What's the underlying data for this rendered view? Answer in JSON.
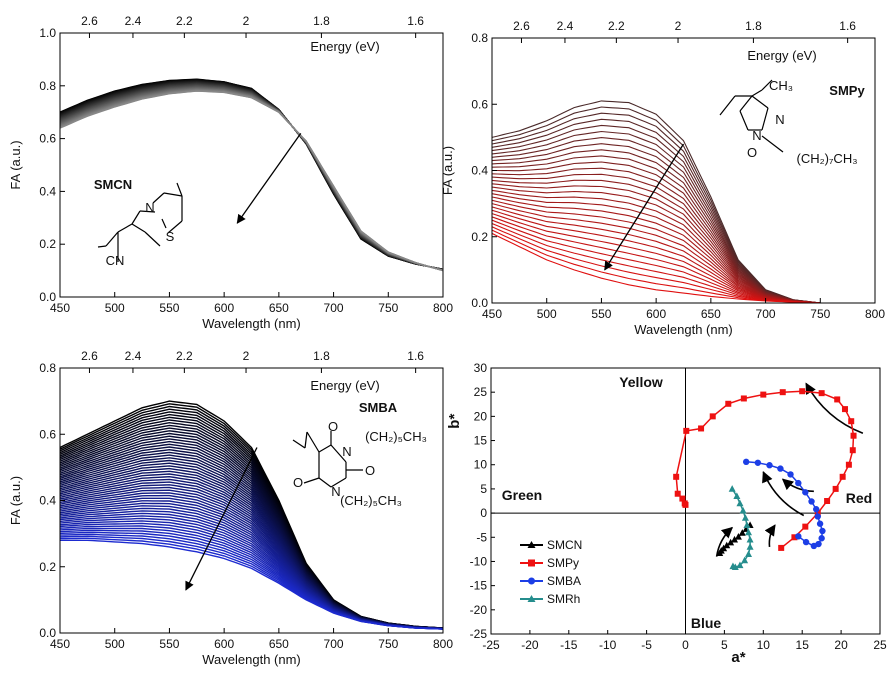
{
  "chart_data": [
    {
      "type": "line",
      "molecule": "SMCN",
      "xlabel": "Wavelength (nm)",
      "ylabel": "FA (a.u.)",
      "top_axis_label": "Energy (eV)",
      "xlim": [
        450,
        800
      ],
      "ylim": [
        0.0,
        1.0
      ],
      "x_ticks": [
        "450",
        "500",
        "550",
        "600",
        "650",
        "700",
        "750",
        "800"
      ],
      "y_ticks": [
        "0.0",
        "0.2",
        "0.4",
        "0.6",
        "0.8",
        "1.0"
      ],
      "energy_ticks": [
        "2.6",
        "2.4",
        "2.2",
        "2",
        "1.8",
        "1.6"
      ],
      "energy_values": [
        2.6,
        2.4,
        2.2,
        2.0,
        1.8,
        1.6
      ],
      "structure_labels": [
        "N",
        "S",
        "CN"
      ],
      "spectrum_family": {
        "count": 60,
        "colors": [
          "#000000",
          "#888888"
        ],
        "first": {
          "x": [
            450,
            475,
            500,
            525,
            550,
            575,
            600,
            625,
            650,
            675,
            700,
            725,
            750,
            775,
            800
          ],
          "y": [
            0.7,
            0.745,
            0.78,
            0.805,
            0.82,
            0.825,
            0.815,
            0.79,
            0.71,
            0.58,
            0.39,
            0.22,
            0.155,
            0.125,
            0.105
          ]
        },
        "last": {
          "x": [
            450,
            475,
            500,
            525,
            550,
            575,
            600,
            625,
            650,
            675,
            700,
            725,
            750,
            775,
            800
          ],
          "y": [
            0.64,
            0.685,
            0.72,
            0.75,
            0.77,
            0.78,
            0.775,
            0.755,
            0.7,
            0.59,
            0.42,
            0.25,
            0.17,
            0.13,
            0.1
          ]
        }
      },
      "arrow": {
        "from": [
          670,
          0.62
        ],
        "to": [
          612,
          0.28
        ]
      }
    },
    {
      "type": "line",
      "molecule": "SMPy",
      "xlabel": "Wavelength (nm)",
      "ylabel": "FA (a.u.)",
      "top_axis_label": "Energy (eV)",
      "xlim": [
        450,
        800
      ],
      "ylim": [
        0.0,
        0.8
      ],
      "x_ticks": [
        "450",
        "500",
        "550",
        "600",
        "650",
        "700",
        "750",
        "800"
      ],
      "y_ticks": [
        "0.0",
        "0.2",
        "0.4",
        "0.6",
        "0.8"
      ],
      "energy_ticks": [
        "2.6",
        "2.4",
        "2.2",
        "2",
        "1.8",
        "1.6"
      ],
      "energy_values": [
        2.6,
        2.4,
        2.2,
        2.0,
        1.8,
        1.6
      ],
      "structure_labels": [
        "CH₃",
        "N",
        "N",
        "O",
        "(CH₂)₇CH₃"
      ],
      "spectrum_family": {
        "count": 30,
        "colors": [
          "#4a2a2a",
          "#e01010"
        ],
        "first": {
          "x": [
            450,
            475,
            500,
            525,
            550,
            575,
            600,
            625,
            650,
            675,
            700,
            725,
            750,
            800
          ],
          "y": [
            0.5,
            0.52,
            0.55,
            0.59,
            0.61,
            0.605,
            0.57,
            0.49,
            0.32,
            0.13,
            0.04,
            0.01,
            0.0,
            0.0
          ]
        },
        "last": {
          "x": [
            450,
            475,
            500,
            525,
            550,
            575,
            600,
            625,
            650,
            675,
            700,
            725,
            750,
            800
          ],
          "y": [
            0.21,
            0.17,
            0.13,
            0.1,
            0.075,
            0.055,
            0.04,
            0.03,
            0.02,
            0.012,
            0.006,
            0.003,
            0.0,
            0.0
          ]
        }
      },
      "arrow": {
        "from": [
          625,
          0.48
        ],
        "to": [
          553,
          0.1
        ]
      }
    },
    {
      "type": "line",
      "molecule": "SMBA",
      "xlabel": "Wavelength (nm)",
      "ylabel": "FA (a.u.)",
      "top_axis_label": "Energy (eV)",
      "xlim": [
        450,
        800
      ],
      "ylim": [
        0.0,
        0.8
      ],
      "x_ticks": [
        "450",
        "500",
        "550",
        "600",
        "650",
        "700",
        "750",
        "800"
      ],
      "y_ticks": [
        "0.0",
        "0.2",
        "0.4",
        "0.6",
        "0.8"
      ],
      "energy_ticks": [
        "2.6",
        "2.4",
        "2.2",
        "2",
        "1.8",
        "1.6"
      ],
      "energy_values": [
        2.6,
        2.4,
        2.2,
        2.0,
        1.8,
        1.6
      ],
      "structure_labels": [
        "O",
        "N",
        "(CH₂)₅CH₃",
        "O",
        "N",
        "O",
        "(CH₂)₅CH₃"
      ],
      "spectrum_family": {
        "count": 55,
        "colors": [
          "#000000",
          "#1d2bd0"
        ],
        "first": {
          "x": [
            450,
            475,
            500,
            525,
            550,
            575,
            600,
            625,
            650,
            675,
            700,
            725,
            750,
            775,
            800
          ],
          "y": [
            0.56,
            0.6,
            0.64,
            0.68,
            0.7,
            0.69,
            0.64,
            0.56,
            0.4,
            0.21,
            0.1,
            0.05,
            0.03,
            0.02,
            0.015
          ]
        },
        "last": {
          "x": [
            450,
            475,
            500,
            525,
            550,
            575,
            600,
            625,
            650,
            675,
            700,
            725,
            750,
            775,
            800
          ],
          "y": [
            0.28,
            0.28,
            0.275,
            0.27,
            0.26,
            0.245,
            0.225,
            0.195,
            0.15,
            0.1,
            0.06,
            0.035,
            0.022,
            0.015,
            0.012
          ]
        }
      },
      "arrow": {
        "from": [
          630,
          0.56
        ],
        "to": [
          565,
          0.13
        ]
      }
    },
    {
      "type": "line",
      "xlabel": "a*",
      "ylabel": "b*",
      "xlim": [
        -25,
        25
      ],
      "ylim": [
        -25,
        30
      ],
      "x_ticks": [
        "-25",
        "-20",
        "-15",
        "-10",
        "-5",
        "0",
        "5",
        "10",
        "15",
        "20",
        "25"
      ],
      "y_ticks": [
        "-25",
        "-20",
        "-15",
        "-10",
        "-5",
        "0",
        "5",
        "10",
        "15",
        "20",
        "25",
        "30"
      ],
      "region_labels": {
        "top": "Yellow",
        "left": "Green",
        "right": "Red",
        "bottom": "Blue"
      },
      "legend_position": "bottom-left",
      "series": [
        {
          "name": "SMCN",
          "color": "#000000",
          "marker": "triangle",
          "x": [
            8.3,
            7.8,
            7.3,
            6.8,
            6.3,
            5.8,
            5.3,
            4.9,
            4.6,
            4.4
          ],
          "y": [
            -2.5,
            -3.3,
            -4.1,
            -4.9,
            -5.5,
            -6.1,
            -6.7,
            -7.3,
            -7.8,
            -8.3
          ]
        },
        {
          "name": "SMPy",
          "color": "#ee1111",
          "marker": "square",
          "x": [
            12.3,
            14.0,
            15.4,
            17.0,
            18.2,
            19.3,
            20.2,
            21.0,
            21.5,
            21.6,
            21.3,
            20.5,
            19.5,
            17.5,
            15.0,
            12.5,
            10.0,
            7.5,
            5.5,
            3.5,
            2.0,
            0.1,
            -1.2,
            -1.0,
            -0.4,
            -0.1,
            0.0
          ],
          "y": [
            -7.2,
            -5.0,
            -2.8,
            0.0,
            2.5,
            5.0,
            7.5,
            10.0,
            13.0,
            16.0,
            19.0,
            21.5,
            23.5,
            24.8,
            25.2,
            25.0,
            24.5,
            23.7,
            22.6,
            20.0,
            17.5,
            17.0,
            7.5,
            4.0,
            3.0,
            2.0,
            1.7
          ]
        },
        {
          "name": "SMBA",
          "color": "#1c3ee6",
          "marker": "circle",
          "x": [
            7.8,
            9.3,
            10.8,
            12.2,
            13.5,
            14.5,
            15.4,
            16.2,
            16.8,
            17.0,
            17.3,
            17.6,
            17.5,
            17.1,
            16.5,
            15.5,
            14.5
          ],
          "y": [
            10.6,
            10.4,
            9.9,
            9.2,
            8.0,
            6.2,
            4.3,
            2.4,
            0.8,
            -0.7,
            -2.2,
            -3.7,
            -5.2,
            -6.4,
            -6.8,
            -6.0,
            -4.8
          ]
        },
        {
          "name": "SMRh",
          "color": "#258d8d",
          "marker": "triangle",
          "x": [
            6.0,
            6.6,
            7.0,
            7.4,
            7.7,
            7.9,
            8.1,
            8.3,
            8.3,
            8.1,
            7.6,
            7.0,
            6.4,
            6.1
          ],
          "y": [
            5.0,
            3.5,
            2.0,
            0.5,
            -1.0,
            -2.5,
            -4.0,
            -5.5,
            -7.0,
            -8.5,
            -9.8,
            -10.8,
            -11.2,
            -11.0
          ]
        }
      ],
      "arrows": [
        {
          "from": [
            22.8,
            16.5
          ],
          "to": [
            15.5,
            26.8
          ]
        },
        {
          "from": [
            15.2,
            -0.5
          ],
          "to": [
            10.0,
            8.5
          ]
        },
        {
          "from": [
            16.5,
            4.5
          ],
          "to": [
            12.5,
            7.0
          ]
        },
        {
          "from": [
            4.0,
            -9.0
          ],
          "to": [
            6.0,
            -3.0
          ]
        },
        {
          "from": [
            10.8,
            -7.0
          ],
          "to": [
            11.5,
            -2.5
          ]
        }
      ]
    }
  ]
}
